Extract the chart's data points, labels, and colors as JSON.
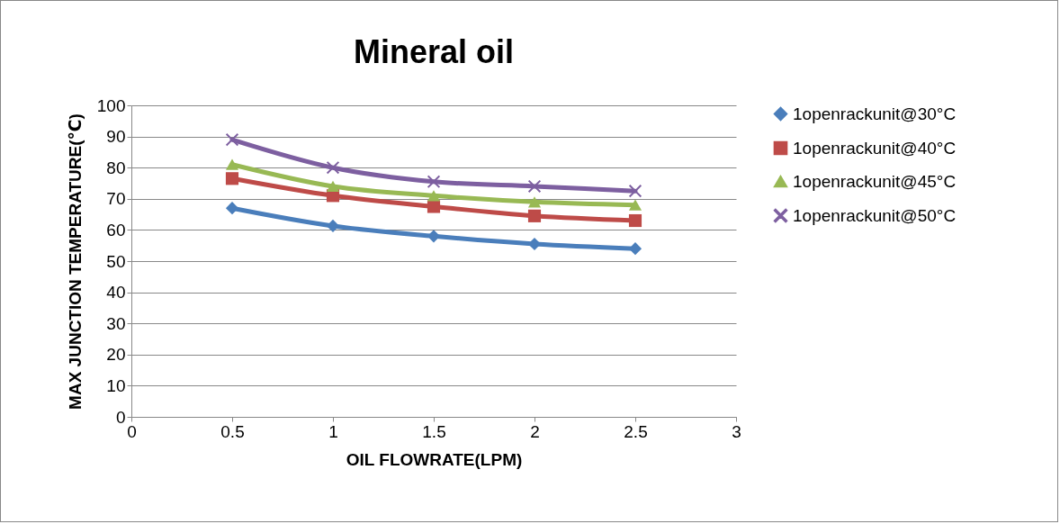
{
  "chart_data": {
    "type": "line",
    "title": "Mineral oil",
    "xlabel": "OIL FLOWRATE(LPM)",
    "ylabel": "MAX JUNCTION TEMPERATURE(℃)",
    "x": [
      0.5,
      1,
      1.5,
      2,
      2.5
    ],
    "series": [
      {
        "name": "1openrackunit@30°C",
        "color": "#4a7ebb",
        "marker": "diamond",
        "values": [
          67,
          61.3,
          58,
          55.5,
          54
        ]
      },
      {
        "name": "1openrackunit@40°C",
        "color": "#be4b48",
        "marker": "square",
        "values": [
          76.5,
          71,
          67.5,
          64.5,
          63
        ]
      },
      {
        "name": "1openrackunit@45°C",
        "color": "#98b954",
        "marker": "triangle",
        "values": [
          81,
          74,
          71,
          69,
          68
        ]
      },
      {
        "name": "1openrackunit@50°C",
        "color": "#7d5fa0",
        "marker": "cross",
        "values": [
          89,
          80,
          75.5,
          74,
          72.5
        ]
      }
    ],
    "xlim": [
      0,
      3
    ],
    "xticks": [
      0,
      0.5,
      1,
      1.5,
      2,
      2.5,
      3
    ],
    "ylim": [
      0,
      100
    ],
    "yticks": [
      0,
      10,
      20,
      30,
      40,
      50,
      60,
      70,
      80,
      90,
      100
    ],
    "grid": "y",
    "legend": "right",
    "line_style": "solid"
  }
}
